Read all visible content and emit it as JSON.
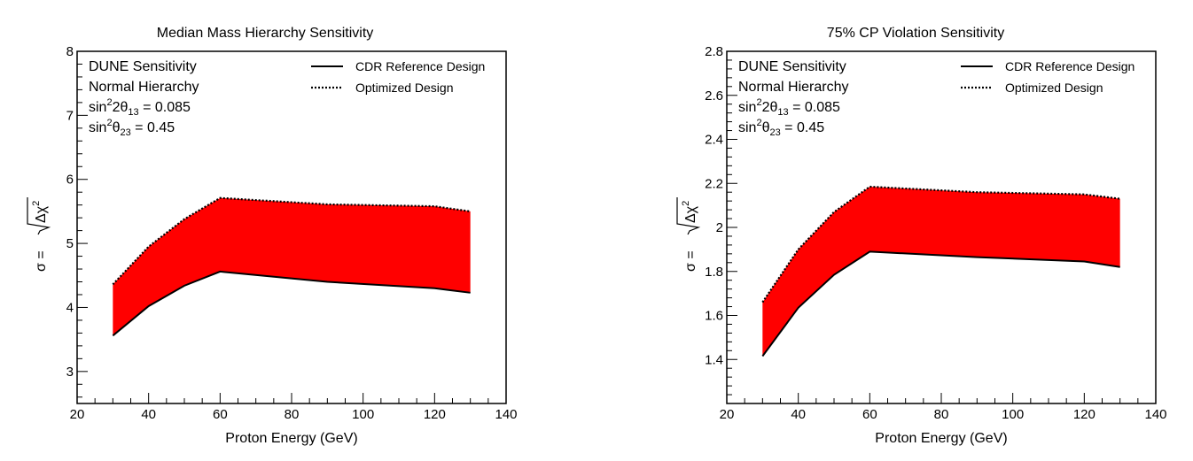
{
  "chart_data": [
    {
      "type": "area",
      "title": "Median Mass Hierarchy Sensitivity",
      "xlabel": "Proton Energy (GeV)",
      "ylabel": "σ = √Δχ²",
      "xlim": [
        20,
        140
      ],
      "ylim": [
        2.5,
        8
      ],
      "xticks": [
        "20",
        "40",
        "60",
        "80",
        "100",
        "120",
        "140"
      ],
      "yticks": [
        "3",
        "4",
        "5",
        "6",
        "7",
        "8"
      ],
      "info": {
        "line1": "DUNE Sensitivity",
        "line2": "Normal Hierarchy",
        "line3_pre": "sin",
        "line3_sup": "2",
        "line3_mid": "2θ",
        "line3_sub": "13",
        "line3_post": " = 0.085",
        "line4_pre": "sin",
        "line4_sup": "2",
        "line4_mid": "θ",
        "line4_sub": "23",
        "line4_post": " = 0.45"
      },
      "fill_color": "#ff0000",
      "series": [
        {
          "name": "CDR Reference Design",
          "style": "solid",
          "x": [
            30,
            40,
            50,
            60,
            90,
            120,
            130
          ],
          "y": [
            3.56,
            4.02,
            4.34,
            4.56,
            4.4,
            4.3,
            4.23
          ]
        },
        {
          "name": "Optimized Design",
          "style": "dotted",
          "x": [
            30,
            40,
            50,
            60,
            90,
            120,
            130
          ],
          "y": [
            4.36,
            4.95,
            5.38,
            5.71,
            5.61,
            5.58,
            5.5
          ]
        }
      ]
    },
    {
      "type": "area",
      "title": "75% CP Violation Sensitivity",
      "xlabel": "Proton Energy (GeV)",
      "ylabel": "σ = √Δχ²",
      "xlim": [
        20,
        140
      ],
      "ylim": [
        1.2,
        2.8
      ],
      "xticks": [
        "20",
        "40",
        "60",
        "80",
        "100",
        "120",
        "140"
      ],
      "yticks": [
        "1.4",
        "1.6",
        "1.8",
        "2",
        "2.2",
        "2.4",
        "2.6",
        "2.8"
      ],
      "info": {
        "line1": "DUNE Sensitivity",
        "line2": "Normal Hierarchy",
        "line3_pre": "sin",
        "line3_sup": "2",
        "line3_mid": "2θ",
        "line3_sub": "13",
        "line3_post": " = 0.085",
        "line4_pre": "sin",
        "line4_sup": "2",
        "line4_mid": "θ",
        "line4_sub": "23",
        "line4_post": " = 0.45"
      },
      "fill_color": "#ff0000",
      "series": [
        {
          "name": "CDR Reference Design",
          "style": "solid",
          "x": [
            30,
            40,
            50,
            60,
            90,
            120,
            130
          ],
          "y": [
            1.415,
            1.635,
            1.785,
            1.89,
            1.865,
            1.845,
            1.82
          ]
        },
        {
          "name": "Optimized Design",
          "style": "dotted",
          "x": [
            30,
            40,
            50,
            60,
            90,
            120,
            130
          ],
          "y": [
            1.66,
            1.9,
            2.07,
            2.185,
            2.16,
            2.15,
            2.13
          ]
        }
      ]
    }
  ]
}
